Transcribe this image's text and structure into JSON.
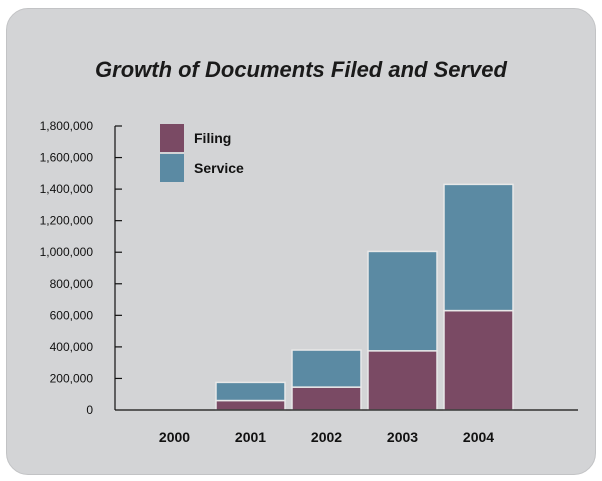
{
  "chart_data": {
    "type": "bar",
    "stacked": true,
    "title": "Growth of Documents Filed and Served",
    "xlabel": "",
    "ylabel": "",
    "categories": [
      "2000",
      "2001",
      "2002",
      "2003",
      "2004"
    ],
    "series": [
      {
        "name": "Filing",
        "color": "#7a4a64",
        "values": [
          0,
          60000,
          145000,
          375000,
          630000
        ]
      },
      {
        "name": "Service",
        "color": "#5b8aa3",
        "values": [
          0,
          115000,
          235000,
          630000,
          800000
        ]
      }
    ],
    "ylim": [
      0,
      1800000
    ],
    "yticks": [
      0,
      200000,
      400000,
      600000,
      800000,
      1000000,
      1200000,
      1400000,
      1600000,
      1800000
    ],
    "ytick_labels": [
      "0",
      "200,000",
      "400,000",
      "600,000",
      "800,000",
      "1,000,000",
      "1,200,000",
      "1,400,000",
      "1,600,000",
      "1,800,000"
    ],
    "legend_position": "top-left",
    "grid": false
  }
}
